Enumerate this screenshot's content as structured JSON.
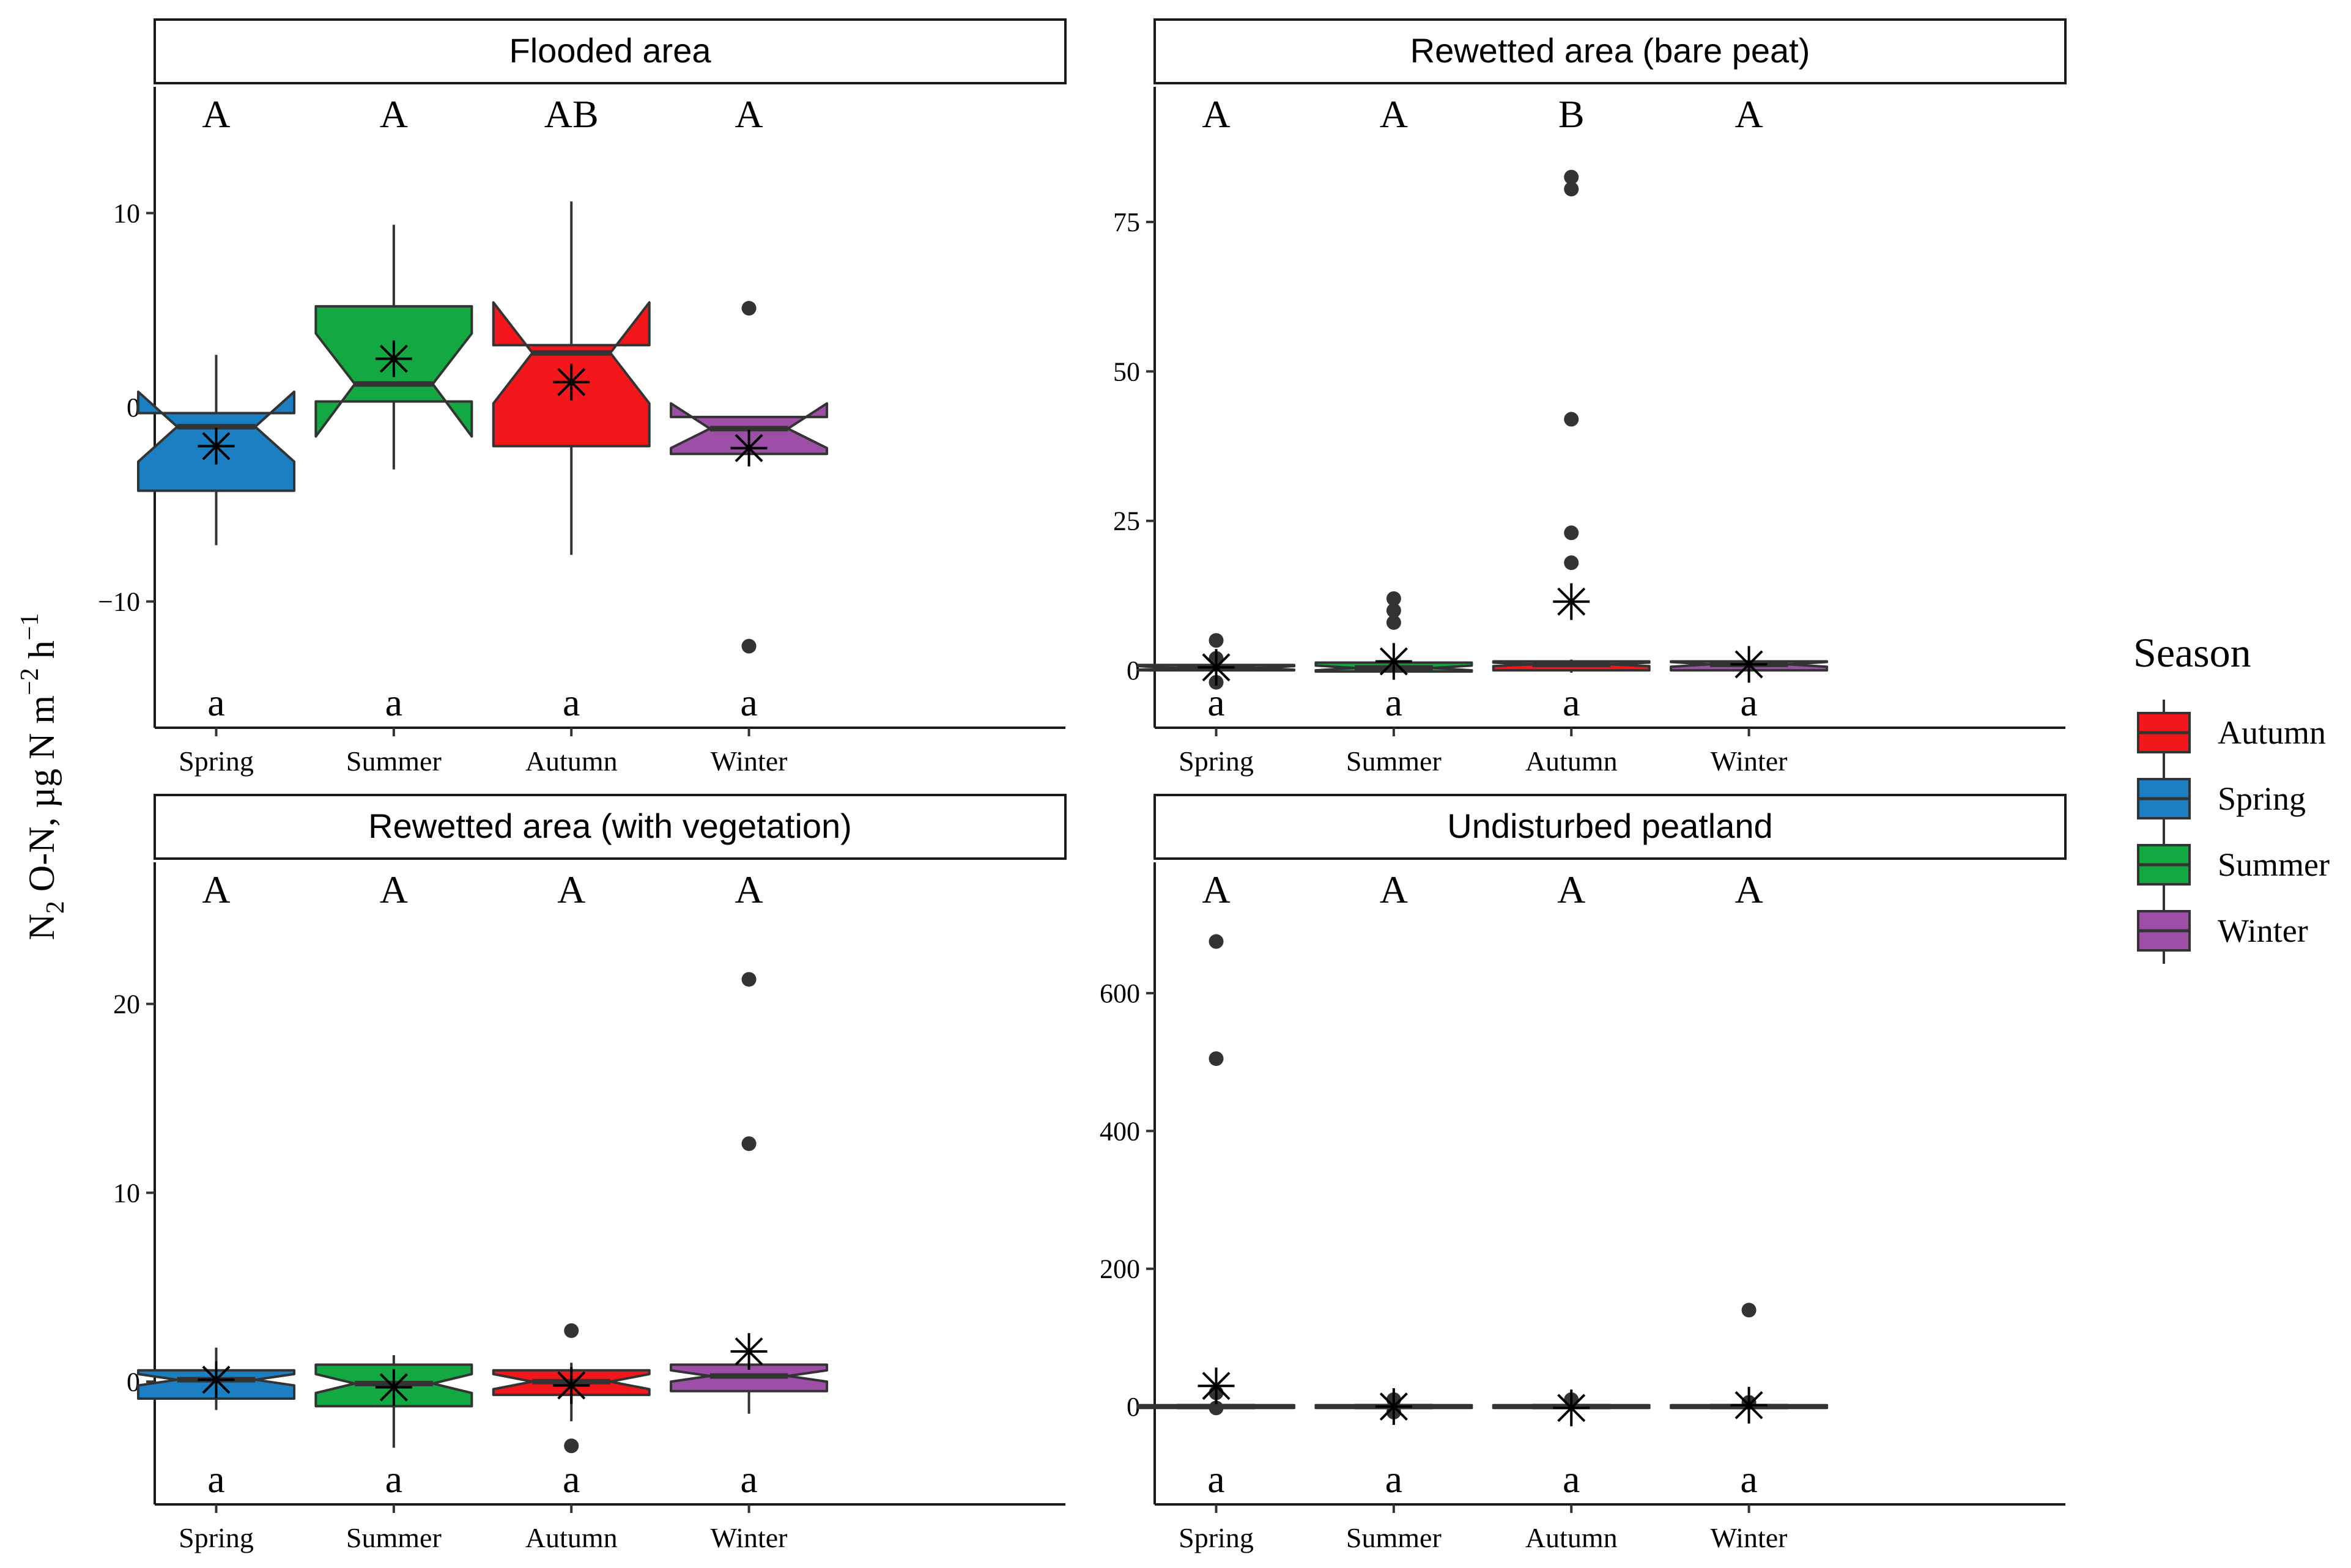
{
  "chart_data": {
    "type": "box",
    "ylabel": "N2 O-N, µg N m−2 h−1",
    "ylabel_parts": {
      "a": "N",
      "b": "2",
      "c": " O-N, µg N m",
      "d": "−2",
      "e": " h",
      "f": "−1"
    },
    "categories": [
      "Spring",
      "Summer",
      "Autumn",
      "Winter"
    ],
    "legend": {
      "title": "Season",
      "entries": [
        {
          "label": "Autumn",
          "color": "#F3171B"
        },
        {
          "label": "Spring",
          "color": "#1C7FC1"
        },
        {
          "label": "Summer",
          "color": "#14A842"
        },
        {
          "label": "Winter",
          "color": "#9D4FA8"
        }
      ]
    },
    "colors": {
      "Spring": "#1C7FC1",
      "Summer": "#14A842",
      "Autumn": "#F3171B",
      "Winter": "#9D4FA8"
    },
    "panels": [
      {
        "title": "Flooded area",
        "ylim": [
          -16.5,
          16.5
        ],
        "yticks": [
          -10,
          0,
          10
        ],
        "ytick_labels": [
          "−10",
          "0",
          "10"
        ],
        "upper_letters": [
          "A",
          "A",
          "AB",
          "A"
        ],
        "lower_letters": [
          "a",
          "a",
          "a",
          "a"
        ],
        "boxes": [
          {
            "cat": "Spring",
            "q1": -4.3,
            "median": -1.0,
            "q3": -0.3,
            "notch_lo": -2.8,
            "notch_hi": 0.8,
            "whisk_lo": -7.1,
            "whisk_hi": 2.7,
            "mean": -2.0,
            "outliers": []
          },
          {
            "cat": "Summer",
            "q1": 0.3,
            "median": 1.2,
            "q3": 5.2,
            "notch_lo": -1.5,
            "notch_hi": 3.8,
            "whisk_lo": -3.2,
            "whisk_hi": 9.4,
            "mean": 2.5,
            "outliers": []
          },
          {
            "cat": "Autumn",
            "q1": -2.0,
            "median": 2.8,
            "q3": 3.2,
            "notch_lo": 0.2,
            "notch_hi": 5.4,
            "whisk_lo": -7.6,
            "whisk_hi": 10.6,
            "mean": 1.3,
            "outliers": []
          },
          {
            "cat": "Winter",
            "q1": -2.4,
            "median": -1.1,
            "q3": -0.5,
            "notch_lo": -2.1,
            "notch_hi": 0.2,
            "whisk_lo": -2.4,
            "whisk_hi": -0.5,
            "mean": -2.1,
            "outliers": [
              5.1,
              -12.3
            ]
          }
        ]
      },
      {
        "title": "Rewetted area (bare peat)",
        "ylim": [
          -9.6,
          97.6
        ],
        "yticks": [
          0,
          25,
          50,
          75
        ],
        "ytick_labels": [
          "0",
          "25",
          "50",
          "75"
        ],
        "upper_letters": [
          "A",
          "A",
          "B",
          "A"
        ],
        "lower_letters": [
          "a",
          "a",
          "a",
          "a"
        ],
        "boxes": [
          {
            "cat": "Spring",
            "q1": 0.0,
            "median": 0.4,
            "q3": 0.9,
            "notch_lo": 0.1,
            "notch_hi": 0.7,
            "whisk_lo": -0.6,
            "whisk_hi": 1.2,
            "mean": 0.5,
            "outliers": [
              5.0,
              2.0,
              -2.0
            ]
          },
          {
            "cat": "Summer",
            "q1": -0.2,
            "median": 0.4,
            "q3": 1.3,
            "notch_lo": 0.0,
            "notch_hi": 0.8,
            "whisk_lo": -0.5,
            "whisk_hi": 1.5,
            "mean": 1.5,
            "outliers": [
              12.0,
              10.0,
              8.0
            ]
          },
          {
            "cat": "Autumn",
            "q1": 0.0,
            "median": 1.0,
            "q3": 1.5,
            "notch_lo": 0.7,
            "notch_hi": 1.3,
            "whisk_lo": -0.4,
            "whisk_hi": 1.8,
            "mean": 11.5,
            "outliers": [
              82.5,
              80.5,
              42.0,
              23.0,
              18.0
            ]
          },
          {
            "cat": "Winter",
            "q1": 0.0,
            "median": 1.0,
            "q3": 1.5,
            "notch_lo": 0.6,
            "notch_hi": 1.4,
            "whisk_lo": -0.3,
            "whisk_hi": 1.8,
            "mean": 1.0,
            "outliers": []
          }
        ]
      },
      {
        "title": "Rewetted area (with vegetation)",
        "ylim": [
          -6.5,
          27.5
        ],
        "yticks": [
          0,
          10,
          20
        ],
        "ytick_labels": [
          "0",
          "10",
          "20"
        ],
        "upper_letters": [
          "A",
          "A",
          "A",
          "A"
        ],
        "lower_letters": [
          "a",
          "a",
          "a",
          "a"
        ],
        "boxes": [
          {
            "cat": "Spring",
            "q1": -0.9,
            "median": 0.1,
            "q3": 0.6,
            "notch_lo": -0.2,
            "notch_hi": 0.4,
            "whisk_lo": -1.5,
            "whisk_hi": 1.8,
            "mean": 0.1,
            "outliers": []
          },
          {
            "cat": "Summer",
            "q1": -1.3,
            "median": -0.1,
            "q3": 0.9,
            "notch_lo": -0.6,
            "notch_hi": 0.4,
            "whisk_lo": -3.5,
            "whisk_hi": 1.4,
            "mean": -0.3,
            "outliers": []
          },
          {
            "cat": "Autumn",
            "q1": -0.7,
            "median": 0.0,
            "q3": 0.6,
            "notch_lo": -0.4,
            "notch_hi": 0.4,
            "whisk_lo": -2.1,
            "whisk_hi": 1.0,
            "mean": -0.2,
            "outliers": [
              2.7,
              -3.4
            ]
          },
          {
            "cat": "Winter",
            "q1": -0.5,
            "median": 0.3,
            "q3": 0.9,
            "notch_lo": 0.0,
            "notch_hi": 0.6,
            "whisk_lo": -1.7,
            "whisk_hi": 1.0,
            "mean": 1.6,
            "outliers": [
              21.3,
              12.6
            ]
          }
        ]
      },
      {
        "title": "Undisturbed peatland",
        "ylim": [
          -142,
          790
        ],
        "yticks": [
          0,
          200,
          400,
          600
        ],
        "ytick_labels": [
          "0",
          "200",
          "400",
          "600"
        ],
        "upper_letters": [
          "A",
          "A",
          "A",
          "A"
        ],
        "lower_letters": [
          "a",
          "a",
          "a",
          "a"
        ],
        "boxes": [
          {
            "cat": "Spring",
            "q1": -2,
            "median": 0,
            "q3": 2,
            "notch_lo": -1,
            "notch_hi": 1,
            "whisk_lo": -4,
            "whisk_hi": 4,
            "mean": 30,
            "outliers": [
              675,
              505,
              20,
              -2
            ]
          },
          {
            "cat": "Summer",
            "q1": -2,
            "median": 0,
            "q3": 2,
            "notch_lo": -1,
            "notch_hi": 1,
            "whisk_lo": -4,
            "whisk_hi": 4,
            "mean": 0,
            "outliers": [
              10,
              -8
            ]
          },
          {
            "cat": "Autumn",
            "q1": -2,
            "median": 0,
            "q3": 2,
            "notch_lo": -1,
            "notch_hi": 1,
            "whisk_lo": -4,
            "whisk_hi": 4,
            "mean": -2,
            "outliers": [
              10
            ]
          },
          {
            "cat": "Winter",
            "q1": -2,
            "median": 0,
            "q3": 2,
            "notch_lo": -1,
            "notch_hi": 1,
            "whisk_lo": -4,
            "whisk_hi": 4,
            "mean": 2,
            "outliers": [
              140,
              6
            ]
          }
        ]
      }
    ]
  }
}
